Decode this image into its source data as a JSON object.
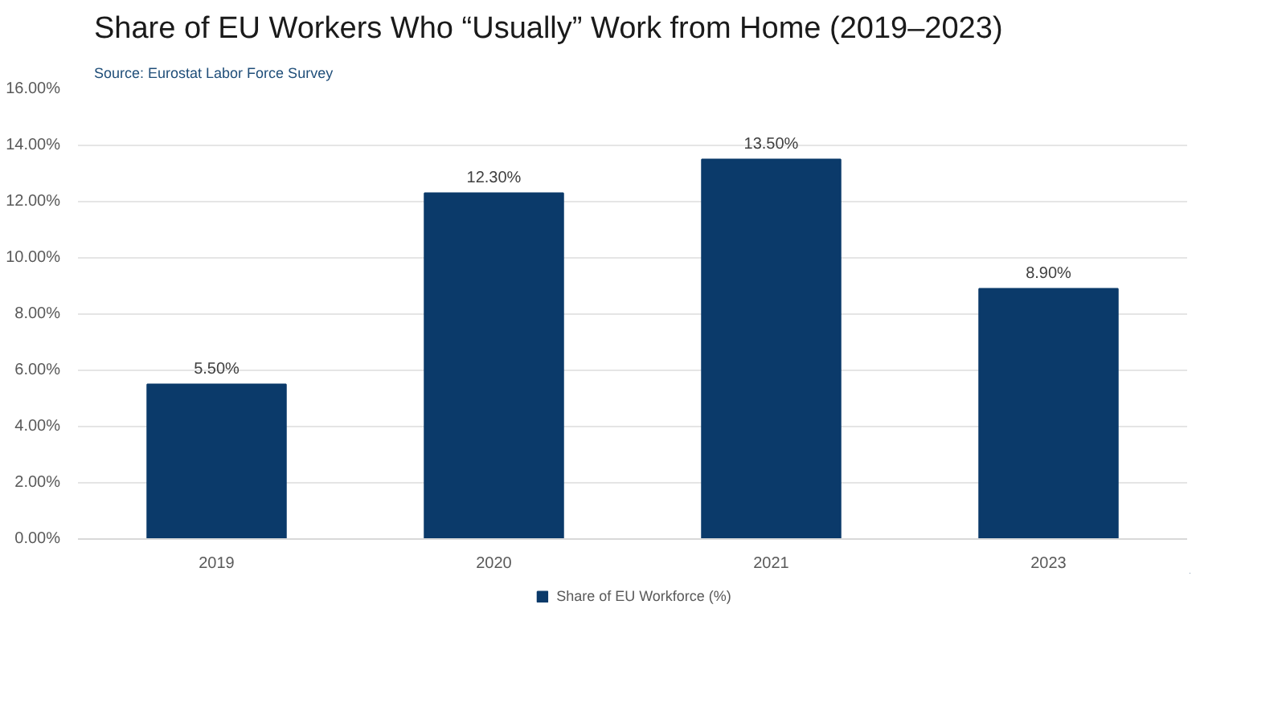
{
  "chart_data": {
    "type": "bar",
    "title": "Share of EU Workers Who “Usually” Work from Home (2019–2023)",
    "subtitle": "Source: Eurostat Labor Force Survey",
    "categories": [
      "2019",
      "2020",
      "2021",
      "2023"
    ],
    "series": [
      {
        "name": "Share of EU Workforce (%)",
        "color": "#0b3a6a",
        "values": [
          5.5,
          12.3,
          13.5,
          8.9
        ],
        "value_labels": [
          "5.50%",
          "12.30%",
          "13.50%",
          "8.90%"
        ]
      }
    ],
    "ylim": [
      0,
      16
    ],
    "yticks": [
      {
        "value": 0,
        "label": "0.00%"
      },
      {
        "value": 2,
        "label": "2.00%"
      },
      {
        "value": 4,
        "label": "4.00%"
      },
      {
        "value": 6,
        "label": "6.00%"
      },
      {
        "value": 8,
        "label": "8.00%"
      },
      {
        "value": 10,
        "label": "10.00%"
      },
      {
        "value": 12,
        "label": "12.00%"
      },
      {
        "value": 14,
        "label": "14.00%"
      },
      {
        "value": 16,
        "label": "16.00%"
      }
    ],
    "grid": "y",
    "legend": "bottom"
  }
}
